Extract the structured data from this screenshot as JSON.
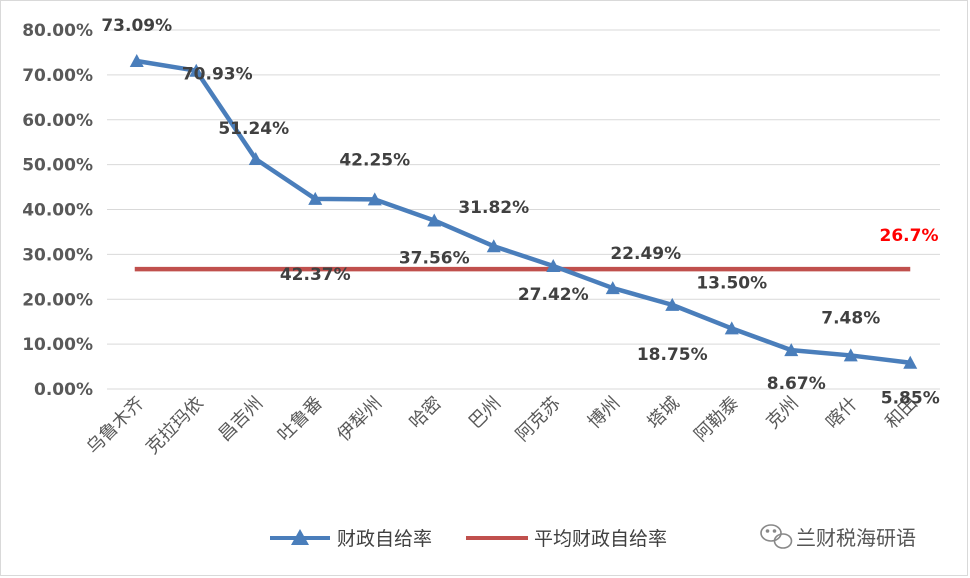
{
  "chart_data": {
    "type": "line",
    "title": "",
    "xlabel": "",
    "ylabel": "",
    "categories": [
      "乌鲁木齐",
      "克拉玛依",
      "昌吉州",
      "吐鲁番",
      "伊犁州",
      "哈密",
      "巴州",
      "阿克苏",
      "博州",
      "塔城",
      "阿勒泰",
      "克州",
      "喀什",
      "和田"
    ],
    "ylim": [
      0,
      80
    ],
    "yticks": [
      "0.00%",
      "10.00%",
      "20.00%",
      "30.00%",
      "40.00%",
      "50.00%",
      "60.00%",
      "70.00%",
      "80.00%"
    ],
    "grid": true,
    "legend_position": "bottom",
    "series": [
      {
        "name": "财政自给率",
        "color": "#4a7ebb",
        "marker": "triangle",
        "values": [
          73.09,
          70.93,
          51.24,
          42.37,
          42.25,
          37.56,
          31.82,
          27.42,
          22.49,
          18.75,
          13.5,
          8.67,
          7.48,
          5.85
        ],
        "labels": [
          "73.09%",
          "70.93%",
          "51.24%",
          "42.37%",
          "42.25%",
          "37.56%",
          "31.82%",
          "27.42%",
          "22.49%",
          "18.75%",
          "13.50%",
          "8.67%",
          "7.48%",
          "5.85%"
        ]
      },
      {
        "name": "平均财政自给率",
        "color": "#c0504d",
        "value": 26.7,
        "label": "26.7%",
        "label_color": "#ff0000"
      }
    ]
  },
  "watermark": {
    "icon": "wechat-icon",
    "text": "兰财税海研语"
  }
}
